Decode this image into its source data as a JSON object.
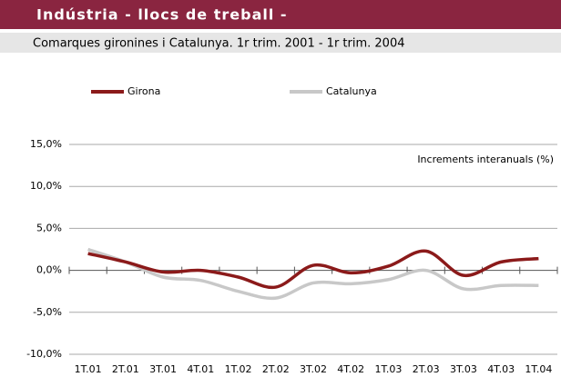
{
  "chart_data": {
    "type": "line",
    "title": "Indústria  - llocs de treball -",
    "subtitle": "Comarques gironines i Catalunya. 1r trim. 2001 - 1r trim. 2004",
    "annotation": "Increments interanuals (%)",
    "categories": [
      "1T.01",
      "2T.01",
      "3T.01",
      "4T.01",
      "1T.02",
      "2T.02",
      "3T.02",
      "4T.02",
      "1T.03",
      "2T.03",
      "3T.03",
      "4T.03",
      "1T.04"
    ],
    "series": [
      {
        "name": "Girona",
        "color": "#8b1a1a",
        "values": [
          2.0,
          1.0,
          -0.2,
          0.0,
          -0.8,
          -2.0,
          0.6,
          -0.3,
          0.5,
          2.3,
          -0.6,
          1.0,
          1.4
        ]
      },
      {
        "name": "Catalunya",
        "color": "#c8c8c8",
        "values": [
          2.5,
          1.0,
          -0.8,
          -1.2,
          -2.5,
          -3.3,
          -1.5,
          -1.6,
          -1.1,
          0.0,
          -2.2,
          -1.8,
          -1.8
        ]
      }
    ],
    "ylim": [
      -10,
      15
    ],
    "yticks": [
      {
        "value": -10,
        "label": "-10,0%"
      },
      {
        "value": -5,
        "label": "-5,0%"
      },
      {
        "value": 0,
        "label": "0,0%"
      },
      {
        "value": 5,
        "label": "5,0%"
      },
      {
        "value": 10,
        "label": "10,0%"
      },
      {
        "value": 15,
        "label": "15,0%"
      }
    ],
    "grid": true
  }
}
